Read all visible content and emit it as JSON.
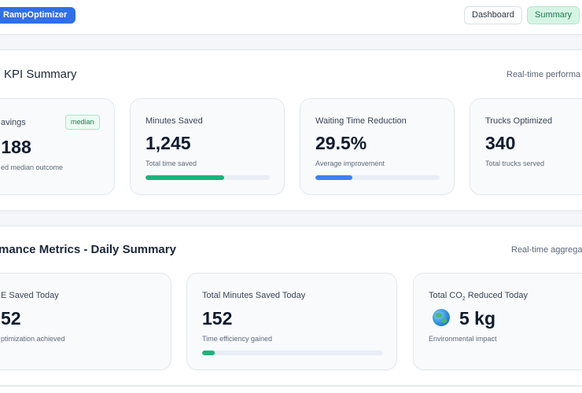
{
  "header": {
    "brand": "RampOptimizer",
    "nav": {
      "dashboard": "Dashboard",
      "summary": "Summary"
    }
  },
  "kpi_section": {
    "title": "KPI Summary",
    "meta": "Real-time performa",
    "cards": [
      {
        "title": "avings",
        "badge": "median",
        "value": ",188",
        "sub": "ed median outcome"
      },
      {
        "title": "Minutes Saved",
        "value": "1,245",
        "sub": "Total time saved",
        "progress": 0.63,
        "color": "#19b47a"
      },
      {
        "title": "Waiting Time Reduction",
        "value": "29.5%",
        "sub": "Average improvement",
        "progress": 0.295,
        "color": "#3b82f6"
      },
      {
        "title": "Trucks Optimized",
        "value": "340",
        "sub": "Total trucks served"
      }
    ]
  },
  "perf_section": {
    "title": "mance Metrics - Daily Summary",
    "meta": "Real-time aggrega",
    "cards": [
      {
        "title": "E Saved Today",
        "value": "52",
        "sub": "ptimization achieved"
      },
      {
        "title": "Total Minutes Saved Today",
        "value": "152",
        "sub": "Time efficiency gained",
        "progress": 0.07,
        "color": "#19b47a"
      },
      {
        "title_prefix": "Total CO",
        "title_sub": "2",
        "title_suffix": " Reduced Today",
        "icon": "globe-icon",
        "value": "5 kg",
        "sub": "Environmental impact"
      }
    ]
  }
}
